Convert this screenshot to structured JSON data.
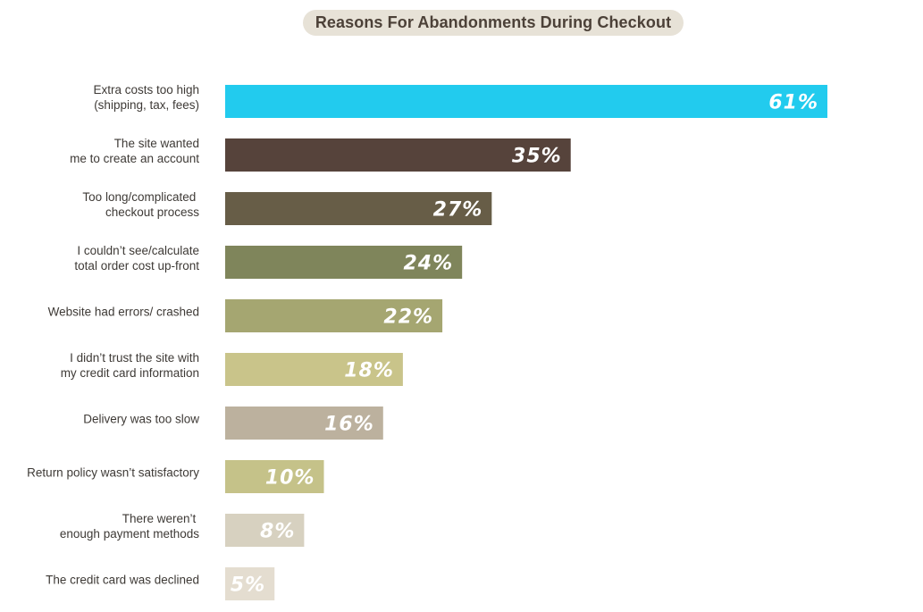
{
  "chart_data": {
    "type": "bar",
    "orientation": "horizontal",
    "title": "Reasons For Abandonments During Checkout",
    "xlabel": "",
    "ylabel": "",
    "xlim": [
      0,
      61
    ],
    "grid": false,
    "categories": [
      [
        "Extra costs too high",
        "(shipping, tax, fees)"
      ],
      [
        "The site wanted",
        "me to create an account"
      ],
      [
        "Too long/complicated ",
        "checkout process"
      ],
      [
        "I couldn’t see/calculate",
        "total order cost up-front"
      ],
      [
        "Website had errors/ crashed"
      ],
      [
        "I didn’t trust the site with",
        "my credit card information"
      ],
      [
        "Delivery was too slow"
      ],
      [
        "Return policy wasn’t satisfactory"
      ],
      [
        "There weren’t ",
        "enough payment methods"
      ],
      [
        "The credit card was declined"
      ]
    ],
    "values": [
      61,
      35,
      27,
      24,
      22,
      18,
      16,
      10,
      8,
      5
    ],
    "value_labels": [
      "61%",
      "35%",
      "27%",
      "24%",
      "22%",
      "18%",
      "16%",
      "10%",
      "8%",
      "5%"
    ],
    "colors": [
      "#22cbee",
      "#56433b",
      "#675d47",
      "#7f855b",
      "#a5a671",
      "#c9c48a",
      "#bcb19e",
      "#c5c289",
      "#d7d1c0",
      "#e4ddd0"
    ]
  }
}
